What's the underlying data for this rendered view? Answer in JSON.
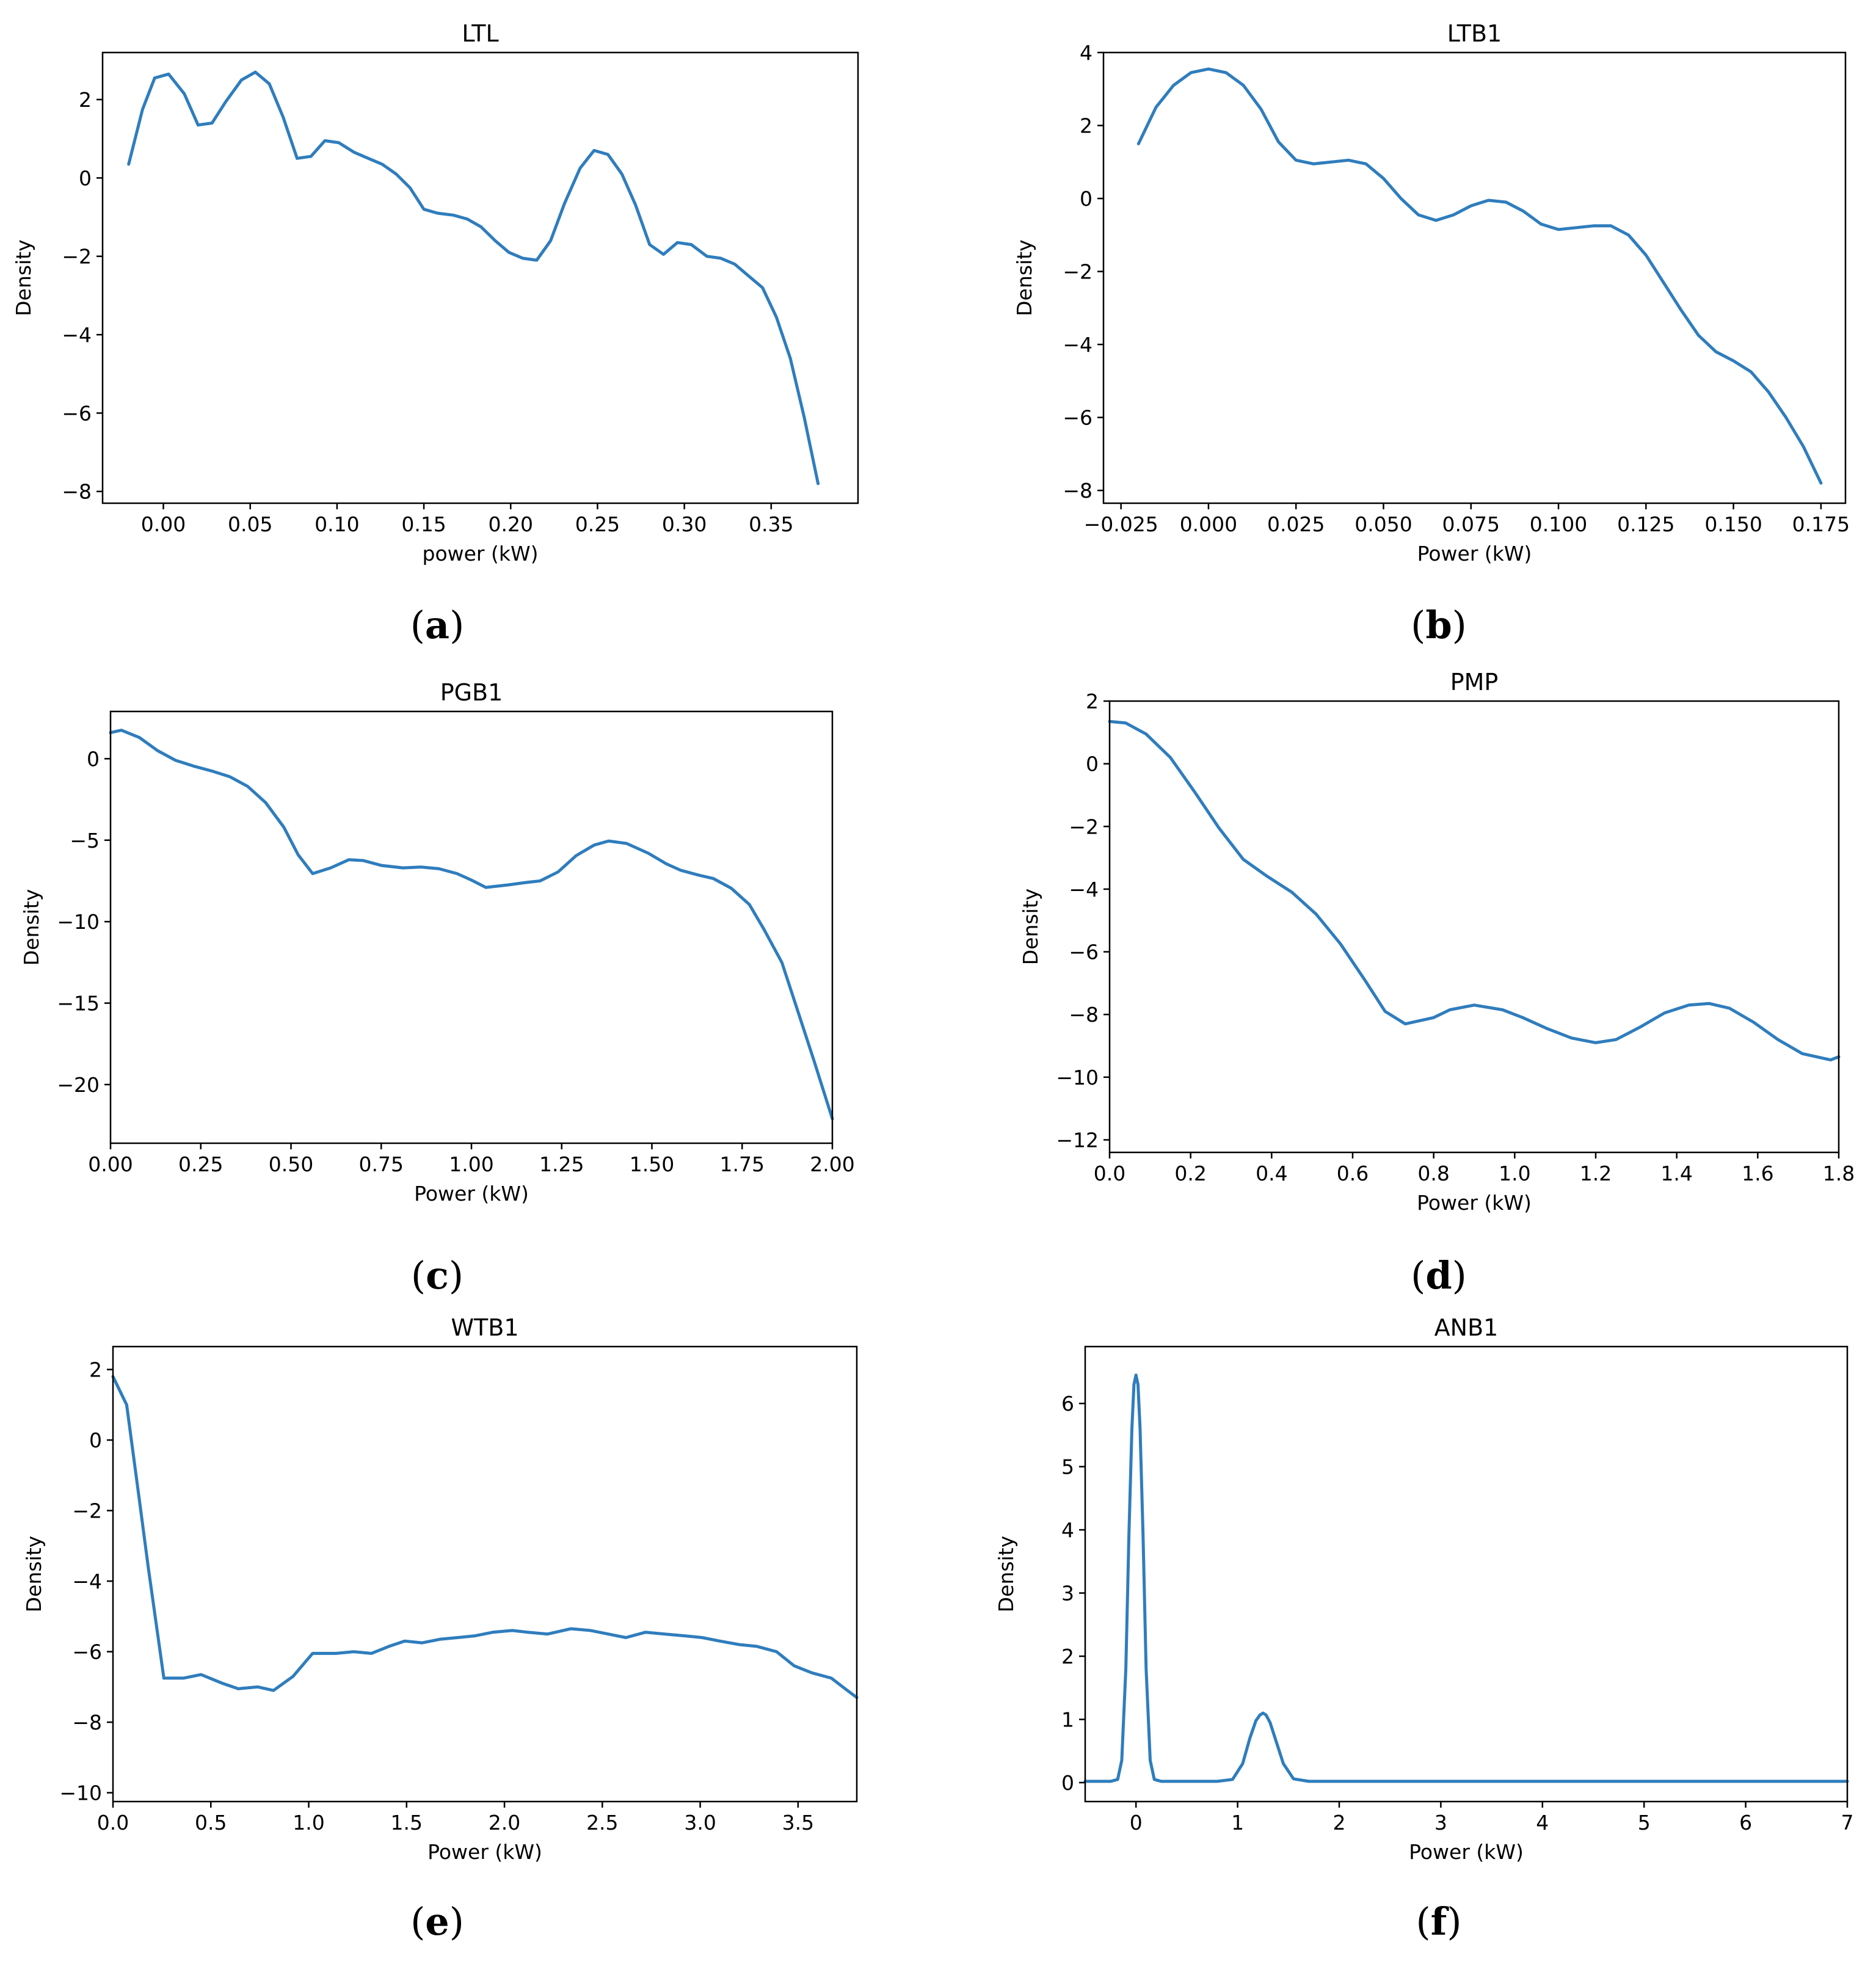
{
  "chart_data": [
    {
      "type": "line",
      "panel": "a",
      "title": "LTL",
      "xlabel": "power (kW)",
      "ylabel": "Density",
      "xlim": [
        -0.035,
        0.4
      ],
      "ylim": [
        -8.3,
        3.2
      ],
      "xticks": [
        0.0,
        0.05,
        0.1,
        0.15,
        0.2,
        0.25,
        0.3,
        0.35
      ],
      "xtick_labels": [
        "0.00",
        "0.05",
        "0.10",
        "0.15",
        "0.20",
        "0.25",
        "0.30",
        "0.35"
      ],
      "yticks": [
        2,
        0,
        -2,
        -4,
        -6,
        -8
      ],
      "ytick_labels": [
        "2",
        "0",
        "−2",
        "−4",
        "−6",
        "−8"
      ],
      "x": [
        -0.02,
        -0.012,
        -0.005,
        0.003,
        0.012,
        0.02,
        0.028,
        0.036,
        0.045,
        0.053,
        0.061,
        0.069,
        0.077,
        0.085,
        0.093,
        0.101,
        0.11,
        0.118,
        0.126,
        0.134,
        0.142,
        0.15,
        0.158,
        0.167,
        0.175,
        0.183,
        0.191,
        0.199,
        0.207,
        0.215,
        0.223,
        0.231,
        0.24,
        0.248,
        0.256,
        0.264,
        0.272,
        0.28,
        0.288,
        0.296,
        0.304,
        0.313,
        0.321,
        0.329,
        0.337,
        0.345,
        0.353,
        0.361,
        0.369,
        0.377
      ],
      "series": [
        {
          "name": "LTL",
          "values": [
            0.35,
            1.75,
            2.55,
            2.65,
            2.15,
            1.35,
            1.4,
            1.95,
            2.5,
            2.7,
            2.4,
            1.55,
            0.5,
            0.55,
            0.95,
            0.9,
            0.65,
            0.5,
            0.35,
            0.1,
            -0.25,
            -0.8,
            -0.9,
            -0.95,
            -1.05,
            -1.25,
            -1.6,
            -1.9,
            -2.05,
            -2.1,
            -1.6,
            -0.65,
            0.25,
            0.7,
            0.6,
            0.1,
            -0.7,
            -1.7,
            -1.95,
            -1.65,
            -1.7,
            -2.0,
            -2.05,
            -2.2,
            -2.5,
            -2.8,
            -3.55,
            -4.6,
            -6.1,
            -7.8
          ]
        }
      ],
      "color": "#2f7dbd"
    },
    {
      "type": "line",
      "panel": "b",
      "title": "LTB1",
      "xlabel": "Power (kW)",
      "ylabel": "Density",
      "xlim": [
        -0.03,
        0.182
      ],
      "ylim": [
        -8.35,
        4.0
      ],
      "xticks": [
        -0.025,
        0.0,
        0.025,
        0.05,
        0.075,
        0.1,
        0.125,
        0.15,
        0.175
      ],
      "xtick_labels": [
        "−0.025",
        "0.000",
        "0.025",
        "0.050",
        "0.075",
        "0.100",
        "0.125",
        "0.150",
        "0.175"
      ],
      "yticks": [
        4,
        2,
        0,
        -2,
        -4,
        -6,
        -8
      ],
      "ytick_labels": [
        "4",
        "2",
        "0",
        "−2",
        "−4",
        "−6",
        "−8"
      ],
      "x": [
        -0.02,
        -0.015,
        -0.01,
        -0.005,
        0.0,
        0.005,
        0.01,
        0.015,
        0.02,
        0.025,
        0.03,
        0.035,
        0.04,
        0.045,
        0.05,
        0.055,
        0.06,
        0.065,
        0.07,
        0.075,
        0.08,
        0.085,
        0.09,
        0.095,
        0.1,
        0.105,
        0.11,
        0.115,
        0.12,
        0.125,
        0.13,
        0.135,
        0.14,
        0.145,
        0.15,
        0.155,
        0.16,
        0.165,
        0.17,
        0.175
      ],
      "series": [
        {
          "name": "LTB1",
          "values": [
            1.5,
            2.5,
            3.1,
            3.45,
            3.55,
            3.45,
            3.1,
            2.45,
            1.55,
            1.05,
            0.95,
            1.0,
            1.05,
            0.95,
            0.55,
            0.0,
            -0.45,
            -0.6,
            -0.45,
            -0.2,
            -0.05,
            -0.1,
            -0.35,
            -0.7,
            -0.85,
            -0.8,
            -0.75,
            -0.75,
            -1.0,
            -1.55,
            -2.3,
            -3.05,
            -3.75,
            -4.2,
            -4.45,
            -4.75,
            -5.3,
            -6.0,
            -6.8,
            -7.8
          ]
        }
      ],
      "color": "#2f7dbd"
    },
    {
      "type": "line",
      "panel": "c",
      "title": "PGB1",
      "xlabel": "Power (kW)",
      "ylabel": "Density",
      "xlim": [
        0.0,
        2.0
      ],
      "ylim": [
        -23.6,
        2.9
      ],
      "xticks": [
        0.0,
        0.25,
        0.5,
        0.75,
        1.0,
        1.25,
        1.5,
        1.75,
        2.0
      ],
      "xtick_labels": [
        "0.00",
        "0.25",
        "0.50",
        "0.75",
        "1.00",
        "1.25",
        "1.50",
        "1.75",
        "2.00"
      ],
      "yticks": [
        0,
        -5,
        -10,
        -15,
        -20
      ],
      "ytick_labels": [
        "0",
        "−5",
        "−10",
        "−15",
        "−20"
      ],
      "x": [
        0.0,
        0.03,
        0.08,
        0.13,
        0.18,
        0.23,
        0.28,
        0.33,
        0.38,
        0.43,
        0.48,
        0.52,
        0.56,
        0.61,
        0.66,
        0.7,
        0.75,
        0.81,
        0.86,
        0.91,
        0.96,
        1.0,
        1.04,
        1.1,
        1.15,
        1.19,
        1.24,
        1.29,
        1.34,
        1.38,
        1.43,
        1.49,
        1.54,
        1.58,
        1.63,
        1.67,
        1.72,
        1.77,
        1.81,
        1.86,
        1.9,
        1.95,
        2.0
      ],
      "series": [
        {
          "name": "PGB1",
          "values": [
            1.6,
            1.75,
            1.3,
            0.5,
            -0.1,
            -0.45,
            -0.75,
            -1.1,
            -1.7,
            -2.7,
            -4.2,
            -5.9,
            -7.05,
            -6.7,
            -6.2,
            -6.25,
            -6.55,
            -6.7,
            -6.65,
            -6.75,
            -7.05,
            -7.45,
            -7.9,
            -7.75,
            -7.6,
            -7.5,
            -6.95,
            -5.95,
            -5.3,
            -5.05,
            -5.2,
            -5.8,
            -6.45,
            -6.85,
            -7.15,
            -7.35,
            -7.95,
            -8.95,
            -10.45,
            -12.5,
            -15.2,
            -18.6,
            -22.1
          ]
        }
      ],
      "color": "#2f7dbd"
    },
    {
      "type": "line",
      "panel": "d",
      "title": "PMP",
      "xlabel": "Power (kW)",
      "ylabel": "Density",
      "xlim": [
        0.0,
        1.8
      ],
      "ylim": [
        -12.4,
        2.0
      ],
      "xticks": [
        0.0,
        0.2,
        0.4,
        0.6,
        0.8,
        1.0,
        1.2,
        1.4,
        1.6,
        1.8
      ],
      "xtick_labels": [
        "0.0",
        "0.2",
        "0.4",
        "0.6",
        "0.8",
        "1.0",
        "1.2",
        "1.4",
        "1.6",
        "1.8"
      ],
      "yticks": [
        2,
        0,
        -2,
        -4,
        -6,
        -8,
        -10,
        -12
      ],
      "ytick_labels": [
        "2",
        "0",
        "−2",
        "−4",
        "−6",
        "−8",
        "−10",
        "−12"
      ],
      "x": [
        0.0,
        0.04,
        0.09,
        0.15,
        0.21,
        0.27,
        0.33,
        0.39,
        0.45,
        0.51,
        0.57,
        0.63,
        0.68,
        0.73,
        0.8,
        0.84,
        0.9,
        0.97,
        1.02,
        1.08,
        1.14,
        1.2,
        1.25,
        1.31,
        1.37,
        1.43,
        1.48,
        1.53,
        1.59,
        1.65,
        1.71,
        1.78,
        1.8
      ],
      "series": [
        {
          "name": "PMP",
          "values": [
            1.35,
            1.3,
            0.95,
            0.2,
            -0.9,
            -2.05,
            -3.05,
            -3.6,
            -4.1,
            -4.8,
            -5.75,
            -6.9,
            -7.9,
            -8.3,
            -8.1,
            -7.85,
            -7.7,
            -7.85,
            -8.1,
            -8.45,
            -8.75,
            -8.9,
            -8.8,
            -8.4,
            -7.95,
            -7.7,
            -7.65,
            -7.8,
            -8.25,
            -8.8,
            -9.25,
            -9.45,
            -9.35
          ]
        }
      ],
      "color": "#2f7dbd"
    },
    {
      "type": "line",
      "panel": "e",
      "title": "WTB1",
      "xlabel": "Power (kW)",
      "ylabel": "Density",
      "xlim": [
        0.0,
        3.8
      ],
      "ylim": [
        -10.25,
        2.65
      ],
      "xticks": [
        0.0,
        0.5,
        1.0,
        1.5,
        2.0,
        2.5,
        3.0,
        3.5
      ],
      "xtick_labels": [
        "0.0",
        "0.5",
        "1.0",
        "1.5",
        "2.0",
        "2.5",
        "3.0",
        "3.5"
      ],
      "yticks": [
        2,
        0,
        -2,
        -4,
        -6,
        -8,
        -10
      ],
      "ytick_labels": [
        "2",
        "0",
        "−2",
        "−4",
        "−6",
        "−8",
        "−10"
      ],
      "x": [
        0.0,
        0.07,
        0.13,
        0.18,
        0.26,
        0.36,
        0.45,
        0.56,
        0.64,
        0.74,
        0.82,
        0.92,
        1.02,
        1.14,
        1.23,
        1.32,
        1.41,
        1.49,
        1.58,
        1.67,
        1.76,
        1.85,
        1.94,
        2.04,
        2.12,
        2.22,
        2.34,
        2.44,
        2.53,
        2.62,
        2.72,
        2.82,
        2.92,
        3.01,
        3.1,
        3.2,
        3.29,
        3.39,
        3.48,
        3.57,
        3.67,
        3.74,
        3.8
      ],
      "series": [
        {
          "name": "WTB1",
          "values": [
            1.8,
            1.0,
            -1.5,
            -3.6,
            -6.75,
            -6.75,
            -6.65,
            -6.9,
            -7.05,
            -7.0,
            -7.1,
            -6.7,
            -6.05,
            -6.05,
            -6.0,
            -6.05,
            -5.85,
            -5.7,
            -5.75,
            -5.65,
            -5.6,
            -5.55,
            -5.45,
            -5.4,
            -5.45,
            -5.5,
            -5.35,
            -5.4,
            -5.5,
            -5.6,
            -5.45,
            -5.5,
            -5.55,
            -5.6,
            -5.7,
            -5.8,
            -5.85,
            -6.0,
            -6.4,
            -6.6,
            -6.75,
            -7.05,
            -7.3
          ]
        }
      ],
      "color": "#2f7dbd"
    },
    {
      "type": "line",
      "panel": "f",
      "title": "ANB1",
      "xlabel": "Power (kW)",
      "ylabel": "Density",
      "xlim": [
        -0.5,
        7.0
      ],
      "ylim": [
        -0.3,
        6.9
      ],
      "xticks": [
        0,
        1,
        2,
        3,
        4,
        5,
        6,
        7
      ],
      "xtick_labels": [
        "0",
        "1",
        "2",
        "3",
        "4",
        "5",
        "6",
        "7"
      ],
      "yticks": [
        0,
        1,
        2,
        3,
        4,
        5,
        6
      ],
      "ytick_labels": [
        "0",
        "1",
        "2",
        "3",
        "4",
        "5",
        "6"
      ],
      "x": [
        -0.5,
        -0.25,
        -0.18,
        -0.14,
        -0.1,
        -0.07,
        -0.04,
        -0.02,
        0.0,
        0.02,
        0.04,
        0.07,
        0.1,
        0.14,
        0.18,
        0.25,
        0.8,
        0.95,
        1.05,
        1.12,
        1.18,
        1.22,
        1.25,
        1.28,
        1.32,
        1.38,
        1.45,
        1.55,
        1.7,
        7.0
      ],
      "series": [
        {
          "name": "ANB1",
          "values": [
            0.02,
            0.02,
            0.05,
            0.35,
            1.8,
            3.9,
            5.6,
            6.3,
            6.45,
            6.3,
            5.6,
            3.9,
            1.8,
            0.35,
            0.05,
            0.02,
            0.02,
            0.05,
            0.3,
            0.7,
            0.98,
            1.07,
            1.1,
            1.07,
            0.95,
            0.65,
            0.3,
            0.06,
            0.02,
            0.02
          ]
        }
      ],
      "color": "#2f7dbd"
    }
  ],
  "captions": [
    {
      "open": "(",
      "letter": "a",
      "close": ")"
    },
    {
      "open": "(",
      "letter": "b",
      "close": ")"
    },
    {
      "open": "(",
      "letter": "c",
      "close": ")"
    },
    {
      "open": "(",
      "letter": "d",
      "close": ")"
    },
    {
      "open": "(",
      "letter": "e",
      "close": ")"
    },
    {
      "open": "(",
      "letter": "f",
      "close": ")"
    }
  ]
}
